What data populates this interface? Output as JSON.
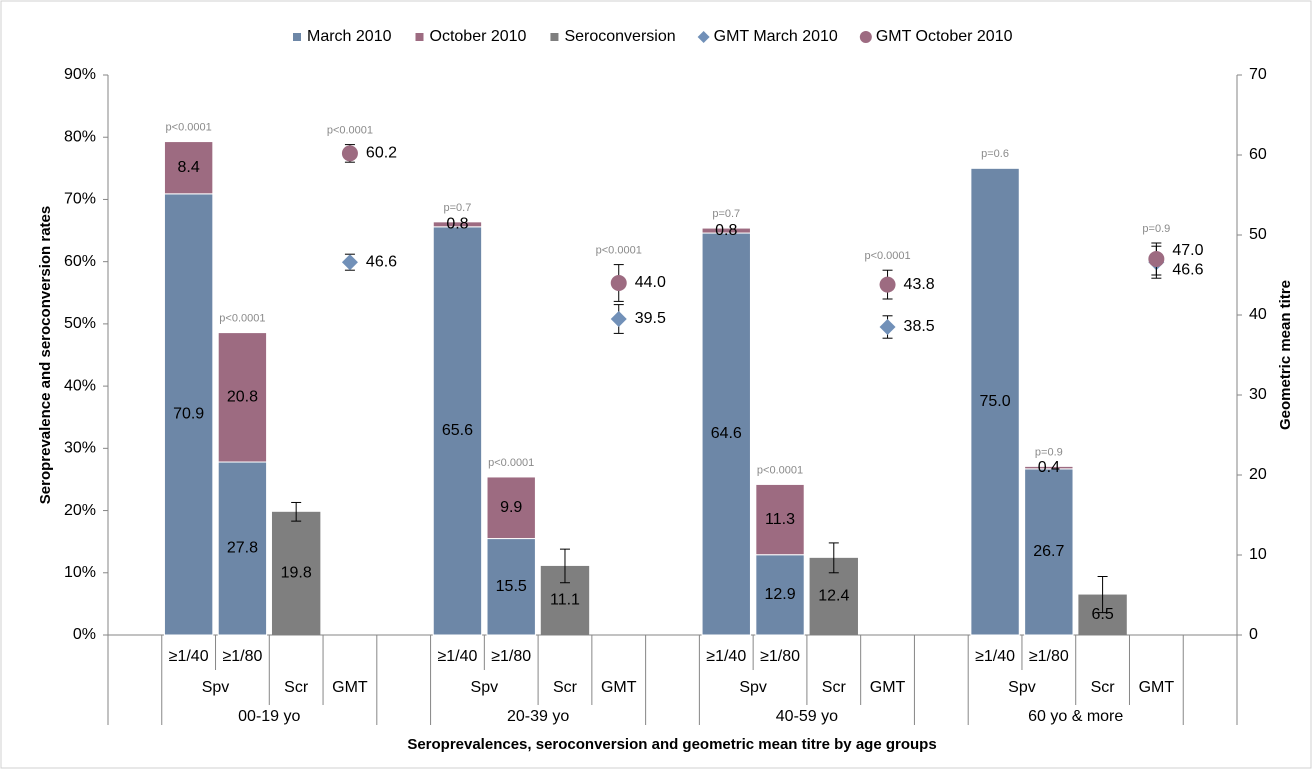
{
  "chart_data": {
    "type": "bar",
    "y_axis_title": "Seroprevalence and seroconversion rates",
    "y2_axis_title": "Geometric mean titre",
    "x_axis_title": "Seroprevalences, seroconversion and geometric mean titre by age groups",
    "groups": [
      "00-19 yo",
      "20-39 yo",
      "40-59 yo",
      "60 yo & more"
    ],
    "subgroups": [
      "Spv",
      "Scr",
      "GMT"
    ],
    "thresholds": [
      "≥1/40",
      "≥1/80"
    ],
    "ylim": [
      0,
      90
    ],
    "yticks": [
      {
        "value": 0,
        "label": "0%"
      },
      {
        "value": 10,
        "label": "10%"
      },
      {
        "value": 20,
        "label": "20%"
      },
      {
        "value": 30,
        "label": "30%"
      },
      {
        "value": 40,
        "label": "40%"
      },
      {
        "value": 50,
        "label": "50%"
      },
      {
        "value": 60,
        "label": "60%"
      },
      {
        "value": 70,
        "label": "70%"
      },
      {
        "value": 80,
        "label": "80%"
      },
      {
        "value": 90,
        "label": "90%"
      }
    ],
    "y2lim": [
      0,
      70
    ],
    "y2ticks": [
      0,
      10,
      20,
      30,
      40,
      50,
      60,
      70
    ],
    "legend": "top",
    "series": [
      {
        "name": "March 2010",
        "color": "#6d87a7",
        "kind": "spv",
        "values": [
          [
            70.9,
            27.8
          ],
          [
            65.6,
            15.5
          ],
          [
            64.6,
            12.9
          ],
          [
            75,
            26.7
          ]
        ],
        "value_labels": [
          [
            "70.9",
            "27.8"
          ],
          [
            "65.6",
            "15.5"
          ],
          [
            "64.6",
            "12.9"
          ],
          [
            "75.0",
            "26.7"
          ]
        ]
      },
      {
        "name": "October 2010",
        "color": "#9d6b81",
        "kind": "spv-stack",
        "values": [
          [
            8.4,
            20.8
          ],
          [
            0.8,
            9.9
          ],
          [
            0.8,
            11.3
          ],
          [
            null,
            0.4
          ]
        ],
        "value_labels": [
          [
            "8.4",
            "20.8"
          ],
          [
            "0.8",
            "9.9"
          ],
          [
            "0.8",
            "11.3"
          ],
          [
            null,
            "0.4"
          ]
        ],
        "p_values": [
          [
            "p<0.0001",
            "p<0.0001"
          ],
          [
            "p=0.7",
            "p<0.0001"
          ],
          [
            "p=0.7",
            "p<0.0001"
          ],
          [
            "p=0.6",
            "p=0.9"
          ]
        ]
      },
      {
        "name": "Seroconversion",
        "color": "#7f7f7f",
        "kind": "scr",
        "values": [
          19.8,
          11.1,
          12.4,
          6.5
        ],
        "errors": [
          1.5,
          2.7,
          2.4,
          2.9
        ]
      },
      {
        "name": "GMT March 2010",
        "color": "#7190b8",
        "kind": "gmt",
        "marker": "diamond",
        "axis": "y2",
        "values": [
          46.6,
          39.5,
          38.5,
          46.6
        ],
        "errors": [
          1,
          1.8,
          1.4,
          2
        ]
      },
      {
        "name": "GMT October 2010",
        "color": "#9d6b81",
        "kind": "gmt",
        "marker": "circle",
        "axis": "y2",
        "values": [
          60.2,
          44,
          43.8,
          47
        ],
        "value_labels": [
          "60.2",
          "44.0",
          "43.8",
          "47.0"
        ],
        "errors": [
          1.1,
          2.3,
          1.8,
          2
        ],
        "p_values": [
          "p<0.0001",
          "p<0.0001",
          "p<0.0001",
          "p=0.9"
        ]
      }
    ]
  }
}
